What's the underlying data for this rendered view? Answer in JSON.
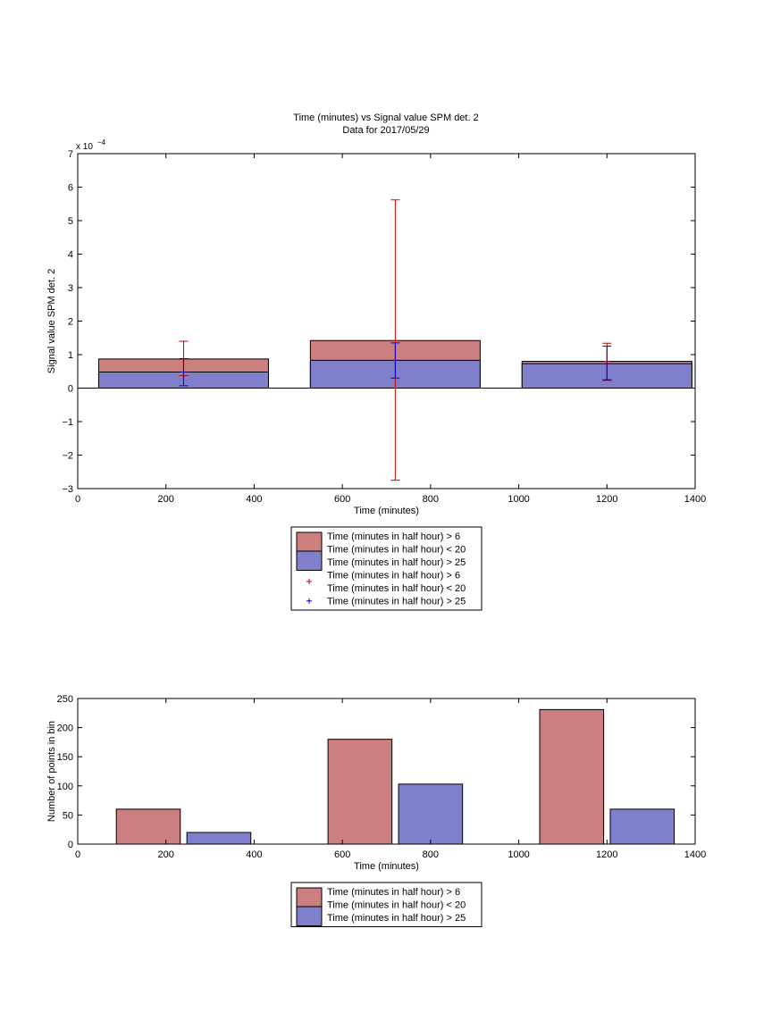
{
  "figure": {
    "title_line1": "Time (minutes) vs Signal value SPM det. 2",
    "title_line2": "Data for 2017/05/29"
  },
  "chart_data": [
    {
      "type": "bar",
      "title": "Time (minutes) vs Signal value SPM det. 2",
      "subtitle": "Data for 2017/05/29",
      "xlabel": "Time (minutes)",
      "ylabel": "Signal value SPM det. 2",
      "y_exponent": "x 10",
      "y_exponent_power": "−4",
      "xlim": [
        0,
        1400
      ],
      "ylim": [
        -3,
        7
      ],
      "xticks": [
        0,
        200,
        400,
        600,
        800,
        1000,
        1200,
        1400
      ],
      "xtick_labels": [
        "0",
        "200",
        "400",
        "600",
        "800",
        "1000",
        "1200",
        "1400"
      ],
      "yticks": [
        -3,
        -2,
        -1,
        0,
        1,
        2,
        3,
        4,
        5,
        6,
        7
      ],
      "ytick_labels": [
        "−3",
        "−2",
        "−1",
        "0",
        "1",
        "2",
        "3",
        "4",
        "5",
        "6",
        "7"
      ],
      "y_scale_note": "values in units of 1e-4",
      "bin_centers": [
        240,
        720,
        1200
      ],
      "bar_width": 385,
      "series": [
        {
          "name": "Time (minutes in half hour) > 6\nTime (minutes in half hour) < 20",
          "color": "#cc7f7f",
          "values": [
            0.87,
            1.42,
            0.8
          ],
          "err_low": [
            0.37,
            -2.75,
            0.23
          ],
          "err_high": [
            1.4,
            5.62,
            1.34
          ],
          "err_color": "#cc0000"
        },
        {
          "name": "Time (minutes in half hour) > 25",
          "color": "#7f7fcc",
          "values": [
            0.48,
            0.83,
            0.73
          ],
          "err_low": [
            0.07,
            0.3,
            0.25
          ],
          "err_high": [
            0.88,
            1.35,
            1.25
          ],
          "err_color": "#0000cc"
        }
      ],
      "legend": {
        "placement": "below",
        "entries": [
          {
            "kind": "patch",
            "color": "#cc7f7f",
            "line1": "Time (minutes in half hour) > 6",
            "line2": "Time (minutes in half hour) < 20"
          },
          {
            "kind": "patch",
            "color": "#7f7fcc",
            "line1": "Time (minutes in half hour) > 25"
          },
          {
            "kind": "marker",
            "color": "#cc0000",
            "line1": "Time (minutes in half hour) > 6",
            "line2": "Time (minutes in half hour) < 20"
          },
          {
            "kind": "marker",
            "color": "#0000cc",
            "line1": "Time (minutes in half hour) > 25"
          }
        ]
      },
      "grid": false
    },
    {
      "type": "bar",
      "xlabel": "Time (minutes)",
      "ylabel": "Number of points in bin",
      "xlim": [
        0,
        1400
      ],
      "ylim": [
        0,
        250
      ],
      "xticks": [
        0,
        200,
        400,
        600,
        800,
        1000,
        1200,
        1400
      ],
      "xtick_labels": [
        "0",
        "200",
        "400",
        "600",
        "800",
        "1000",
        "1200",
        "1400"
      ],
      "yticks": [
        0,
        50,
        100,
        150,
        200,
        250
      ],
      "ytick_labels": [
        "0",
        "50",
        "100",
        "150",
        "200",
        "250"
      ],
      "bin_centers": [
        240,
        720,
        1200
      ],
      "group_offset": 80,
      "bar_width": 145,
      "series": [
        {
          "name": "Time (minutes in half hour) > 6\nTime (minutes in half hour) < 20",
          "color": "#cc7f7f",
          "values": [
            60,
            180,
            231
          ]
        },
        {
          "name": "Time (minutes in half hour) > 25",
          "color": "#7f7fcc",
          "values": [
            20,
            103,
            60
          ]
        }
      ],
      "legend": {
        "placement": "below",
        "entries": [
          {
            "kind": "patch",
            "color": "#cc7f7f",
            "line1": "Time (minutes in half hour) > 6",
            "line2": "Time (minutes in half hour) < 20"
          },
          {
            "kind": "patch",
            "color": "#7f7fcc",
            "line1": "Time (minutes in half hour) > 25"
          }
        ]
      },
      "grid": false
    }
  ]
}
